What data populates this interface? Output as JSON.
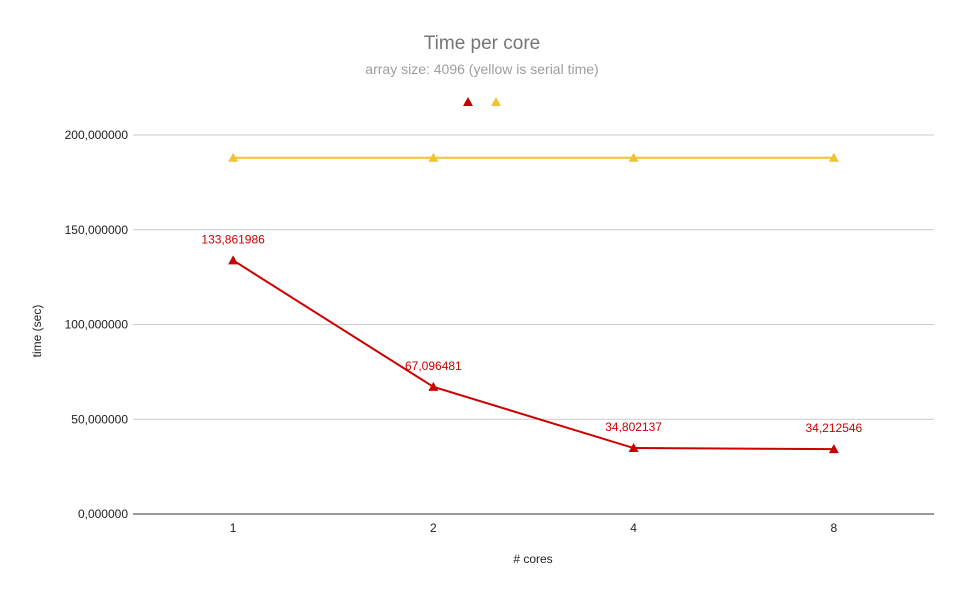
{
  "chart_data": {
    "type": "line",
    "title": "Time per core",
    "subtitle": "array size: 4096 (yellow is serial time)",
    "xlabel": "# cores",
    "ylabel": "time (sec)",
    "categories": [
      "1",
      "2",
      "4",
      "8"
    ],
    "ylim": [
      0,
      200
    ],
    "y_ticks": [
      0,
      50,
      100,
      150,
      200
    ],
    "y_tick_labels": [
      "0,000000",
      "50,000000",
      "100,000000",
      "150,000000",
      "200,000000"
    ],
    "grid": true,
    "legend_position": "top",
    "series": [
      {
        "color": "#cc0000",
        "marker": "triangle",
        "values": [
          133.861986,
          67.096481,
          34.802137,
          34.212546
        ],
        "data_labels": [
          "133,861986",
          "67,096481",
          "34,802137",
          "34,212546"
        ]
      },
      {
        "color": "#f1c232",
        "marker": "triangle",
        "values": [
          188,
          188,
          188,
          188
        ],
        "data_labels": []
      }
    ]
  }
}
